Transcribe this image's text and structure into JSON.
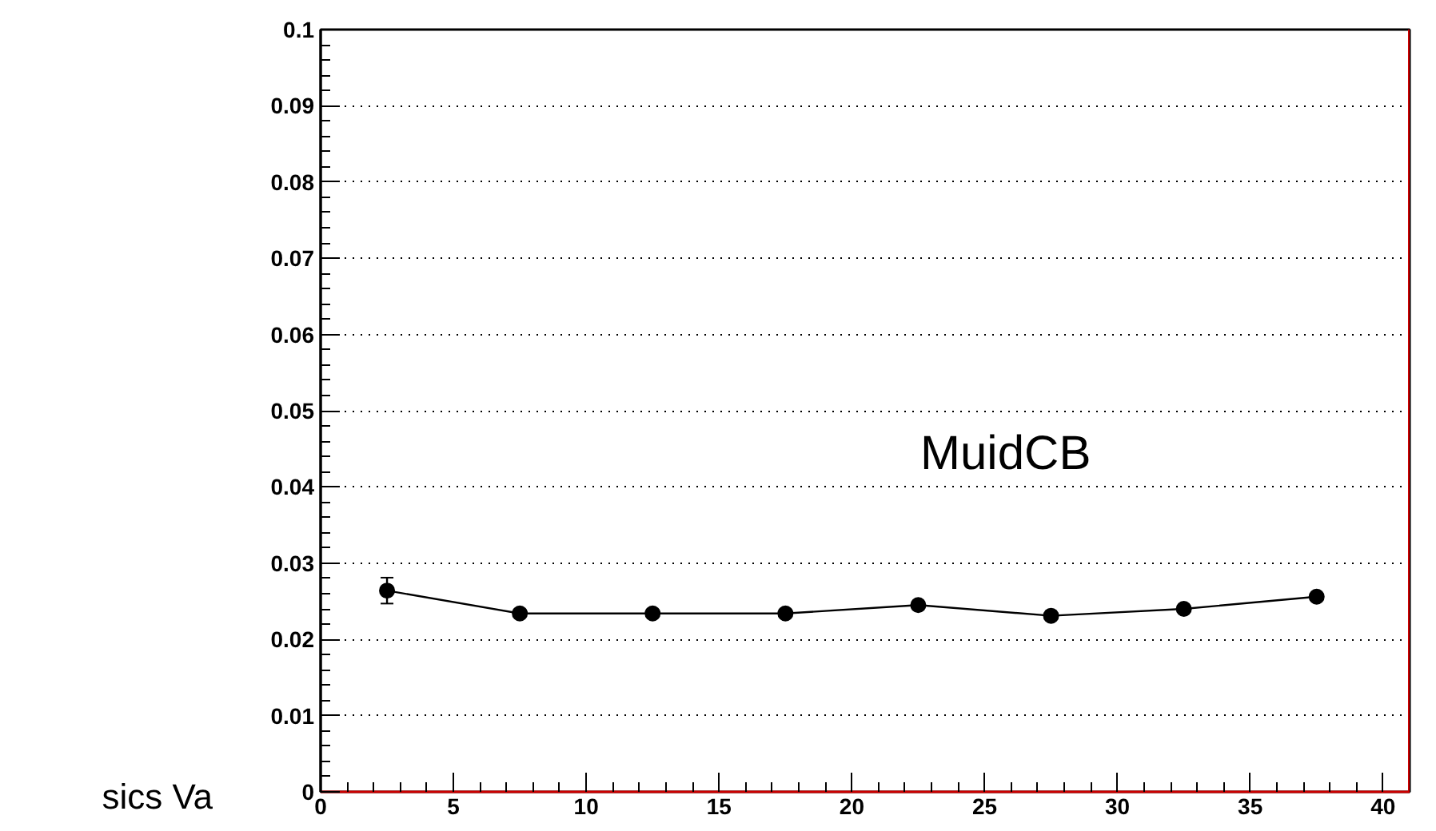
{
  "chart_data": {
    "type": "line",
    "x": [
      2.5,
      7.5,
      12.5,
      17.5,
      22.5,
      27.5,
      32.5,
      37.5
    ],
    "values": [
      0.0264,
      0.0234,
      0.0234,
      0.0234,
      0.0245,
      0.0231,
      0.024,
      0.0256
    ],
    "errors": [
      0.0017,
      0.0004,
      0.0004,
      0.0004,
      0.0004,
      0.0004,
      0.0004,
      0.0004
    ],
    "color": "#000000",
    "marker": "circle",
    "line_style": "solid",
    "xlim": [
      0,
      41
    ],
    "xticks": [
      0,
      5,
      10,
      15,
      20,
      25,
      30,
      35,
      40
    ],
    "ylim": [
      0,
      0.1
    ],
    "yticks": [
      0,
      0.01,
      0.02,
      0.03,
      0.04,
      0.05,
      0.06,
      0.07,
      0.08,
      0.09,
      0.1
    ],
    "grid": "y",
    "annotations": [
      "MuidCB",
      "sics Va"
    ]
  }
}
